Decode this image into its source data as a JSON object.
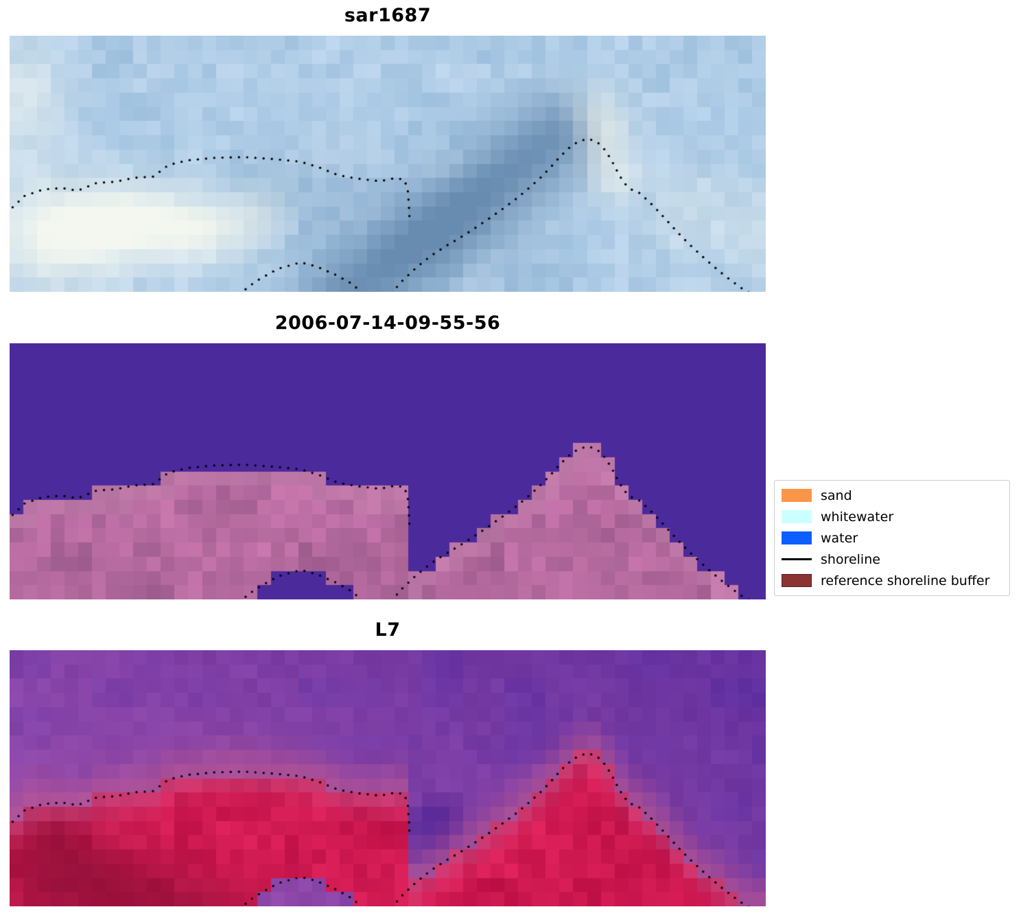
{
  "figure": {
    "background": "#ffffff",
    "panels": [
      {
        "title": "sar1687"
      },
      {
        "title": "2006-07-14-09-55-56"
      },
      {
        "title": "L7"
      }
    ]
  },
  "legend": {
    "items": [
      {
        "label": "sand",
        "type": "patch",
        "color": "#fb9547"
      },
      {
        "label": "whitewater",
        "type": "patch",
        "color": "#ccffff"
      },
      {
        "label": "water",
        "type": "patch",
        "color": "#0d5eff"
      },
      {
        "label": "shoreline",
        "type": "line",
        "color": "#000000"
      },
      {
        "label": "reference shoreline buffer",
        "type": "patch",
        "color": "#8b3232",
        "edge": "#5a1f1f"
      }
    ]
  },
  "chart_data": {
    "type": "heatmap",
    "description": "Three co-registered coastal image panels (SAR, classified, Landsat 7) with detected shoreline points overlaid as black dots",
    "grid": {
      "cols": 55,
      "rows": 18
    },
    "panels": [
      {
        "title": "sar1687",
        "kind": "sar",
        "base": "#b0cde7",
        "cloud": "#f5f8f0",
        "band": "#688cb0"
      },
      {
        "title": "2006-07-14-09-55-56",
        "kind": "classified",
        "water": "#4b2a9c",
        "land": "#b46a9e",
        "land_light": "#c887b2"
      },
      {
        "title": "L7",
        "kind": "landsat",
        "water": "#9a4fae",
        "water_dark": "#5c2d9e",
        "land": "#d01a52",
        "land_dark": "#8e1038",
        "transition": "#c2588e"
      }
    ],
    "shoreline": {
      "dot_color": "#000000",
      "channel": [
        0.529
      ],
      "paths": {
        "left": [
          [
            0.004,
            0.67
          ],
          [
            0.02,
            0.625
          ],
          [
            0.045,
            0.6
          ],
          [
            0.07,
            0.595
          ],
          [
            0.09,
            0.605
          ],
          [
            0.115,
            0.575
          ],
          [
            0.14,
            0.57
          ],
          [
            0.165,
            0.555
          ],
          [
            0.19,
            0.55
          ],
          [
            0.21,
            0.505
          ],
          [
            0.235,
            0.487
          ],
          [
            0.27,
            0.477
          ],
          [
            0.31,
            0.474
          ],
          [
            0.35,
            0.482
          ],
          [
            0.385,
            0.492
          ],
          [
            0.41,
            0.515
          ],
          [
            0.435,
            0.545
          ],
          [
            0.46,
            0.558
          ],
          [
            0.49,
            0.568
          ],
          [
            0.51,
            0.556
          ],
          [
            0.522,
            0.562
          ],
          [
            0.5265,
            0.6
          ],
          [
            0.528,
            0.66
          ],
          [
            0.529,
            0.72
          ]
        ],
        "intrusion": [
          [
            0.295,
            1.03
          ],
          [
            0.325,
            0.96
          ],
          [
            0.355,
            0.91
          ],
          [
            0.385,
            0.885
          ],
          [
            0.405,
            0.9
          ],
          [
            0.43,
            0.932
          ],
          [
            0.455,
            0.972
          ],
          [
            0.472,
            1.03
          ]
        ],
        "right": [
          [
            0.505,
            1.005
          ],
          [
            0.52,
            0.955
          ],
          [
            0.538,
            0.905
          ],
          [
            0.556,
            0.862
          ],
          [
            0.575,
            0.825
          ],
          [
            0.595,
            0.79
          ],
          [
            0.615,
            0.752
          ],
          [
            0.635,
            0.712
          ],
          [
            0.654,
            0.672
          ],
          [
            0.672,
            0.632
          ],
          [
            0.688,
            0.592
          ],
          [
            0.703,
            0.552
          ],
          [
            0.716,
            0.512
          ],
          [
            0.728,
            0.472
          ],
          [
            0.74,
            0.438
          ],
          [
            0.752,
            0.413
          ],
          [
            0.765,
            0.402
          ],
          [
            0.777,
            0.415
          ],
          [
            0.788,
            0.448
          ],
          [
            0.797,
            0.492
          ],
          [
            0.805,
            0.538
          ],
          [
            0.813,
            0.576
          ],
          [
            0.822,
            0.6
          ],
          [
            0.832,
            0.612
          ],
          [
            0.842,
            0.638
          ],
          [
            0.853,
            0.67
          ],
          [
            0.865,
            0.708
          ],
          [
            0.877,
            0.747
          ],
          [
            0.889,
            0.785
          ],
          [
            0.901,
            0.82
          ],
          [
            0.914,
            0.856
          ],
          [
            0.928,
            0.893
          ],
          [
            0.942,
            0.928
          ],
          [
            0.956,
            0.96
          ],
          [
            0.969,
            0.988
          ],
          [
            0.979,
            1.005
          ]
        ]
      }
    }
  }
}
